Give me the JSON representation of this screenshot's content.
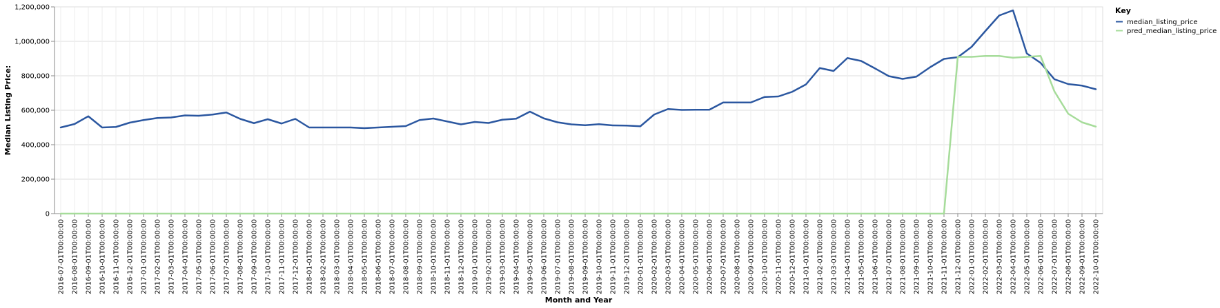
{
  "chart_data": {
    "type": "line",
    "xlabel": "Month and Year",
    "ylabel": "Median Listing Price:",
    "ylim": [
      0,
      1200000
    ],
    "y_ticks": [
      "0",
      "200,000",
      "400,000",
      "600,000",
      "800,000",
      "1,000,000",
      "1,200,000"
    ],
    "grid": true,
    "legend": {
      "title": "Key",
      "placement": "top-right"
    },
    "x": [
      "2016-07-01T00:00:00",
      "2016-08-01T00:00:00",
      "2016-09-01T00:00:00",
      "2016-10-01T00:00:00",
      "2016-11-01T00:00:00",
      "2016-12-01T00:00:00",
      "2017-01-01T00:00:00",
      "2017-02-01T00:00:00",
      "2017-03-01T00:00:00",
      "2017-04-01T00:00:00",
      "2017-05-01T00:00:00",
      "2017-06-01T00:00:00",
      "2017-07-01T00:00:00",
      "2017-08-01T00:00:00",
      "2017-09-01T00:00:00",
      "2017-10-01T00:00:00",
      "2017-11-01T00:00:00",
      "2017-12-01T00:00:00",
      "2018-01-01T00:00:00",
      "2018-02-01T00:00:00",
      "2018-03-01T00:00:00",
      "2018-04-01T00:00:00",
      "2018-05-01T00:00:00",
      "2018-06-01T00:00:00",
      "2018-07-01T00:00:00",
      "2018-08-01T00:00:00",
      "2018-09-01T00:00:00",
      "2018-10-01T00:00:00",
      "2018-11-01T00:00:00",
      "2018-12-01T00:00:00",
      "2019-01-01T00:00:00",
      "2019-02-01T00:00:00",
      "2019-03-01T00:00:00",
      "2019-04-01T00:00:00",
      "2019-05-01T00:00:00",
      "2019-06-01T00:00:00",
      "2019-07-01T00:00:00",
      "2019-08-01T00:00:00",
      "2019-09-01T00:00:00",
      "2019-10-01T00:00:00",
      "2019-11-01T00:00:00",
      "2019-12-01T00:00:00",
      "2020-01-01T00:00:00",
      "2020-02-01T00:00:00",
      "2020-03-01T00:00:00",
      "2020-04-01T00:00:00",
      "2020-05-01T00:00:00",
      "2020-06-01T00:00:00",
      "2020-07-01T00:00:00",
      "2020-08-01T00:00:00",
      "2020-09-01T00:00:00",
      "2020-10-01T00:00:00",
      "2020-11-01T00:00:00",
      "2020-12-01T00:00:00",
      "2021-01-01T00:00:00",
      "2021-02-01T00:00:00",
      "2021-03-01T00:00:00",
      "2021-04-01T00:00:00",
      "2021-05-01T00:00:00",
      "2021-06-01T00:00:00",
      "2021-07-01T00:00:00",
      "2021-08-01T00:00:00",
      "2021-09-01T00:00:00",
      "2021-10-01T00:00:00",
      "2021-11-01T00:00:00",
      "2021-12-01T00:00:00",
      "2022-01-01T00:00:00",
      "2022-02-01T00:00:00",
      "2022-03-01T00:00:00",
      "2022-04-01T00:00:00",
      "2022-05-01T00:00:00",
      "2022-06-01T00:00:00",
      "2022-07-01T00:00:00",
      "2022-08-01T00:00:00",
      "2022-09-01T00:00:00",
      "2022-10-01T00:00:00"
    ],
    "series": [
      {
        "name": "median_listing_price",
        "color": "#2b57a0",
        "values": [
          500000,
          520000,
          565000,
          500000,
          503000,
          528000,
          543000,
          555000,
          558000,
          570000,
          568000,
          575000,
          587000,
          550000,
          525000,
          548000,
          523000,
          550000,
          500000,
          500000,
          500000,
          500000,
          496000,
          500000,
          504000,
          508000,
          543000,
          552000,
          535000,
          518000,
          532000,
          526000,
          545000,
          551000,
          592000,
          553000,
          530000,
          518000,
          513000,
          519000,
          512000,
          511000,
          507000,
          575000,
          607000,
          602000,
          603000,
          603000,
          645000,
          645000,
          645000,
          677000,
          680000,
          707000,
          750000,
          845000,
          828000,
          903000,
          886000,
          843000,
          798000,
          782000,
          795000,
          850000,
          898000,
          908000,
          968000,
          1060000,
          1150000,
          1180000,
          930000,
          875000,
          780000,
          752000,
          743000,
          722000
        ]
      },
      {
        "name": "pred_median_listing_price",
        "color": "#a6dc9a",
        "values": [
          0,
          0,
          0,
          0,
          0,
          0,
          0,
          0,
          0,
          0,
          0,
          0,
          0,
          0,
          0,
          0,
          0,
          0,
          0,
          0,
          0,
          0,
          0,
          0,
          0,
          0,
          0,
          0,
          0,
          0,
          0,
          0,
          0,
          0,
          0,
          0,
          0,
          0,
          0,
          0,
          0,
          0,
          0,
          0,
          0,
          0,
          0,
          0,
          0,
          0,
          0,
          0,
          0,
          0,
          0,
          0,
          0,
          0,
          0,
          0,
          0,
          0,
          0,
          0,
          0,
          910000,
          910000,
          915000,
          915000,
          905000,
          910000,
          915000,
          710000,
          580000,
          530000,
          505000
        ]
      }
    ]
  }
}
